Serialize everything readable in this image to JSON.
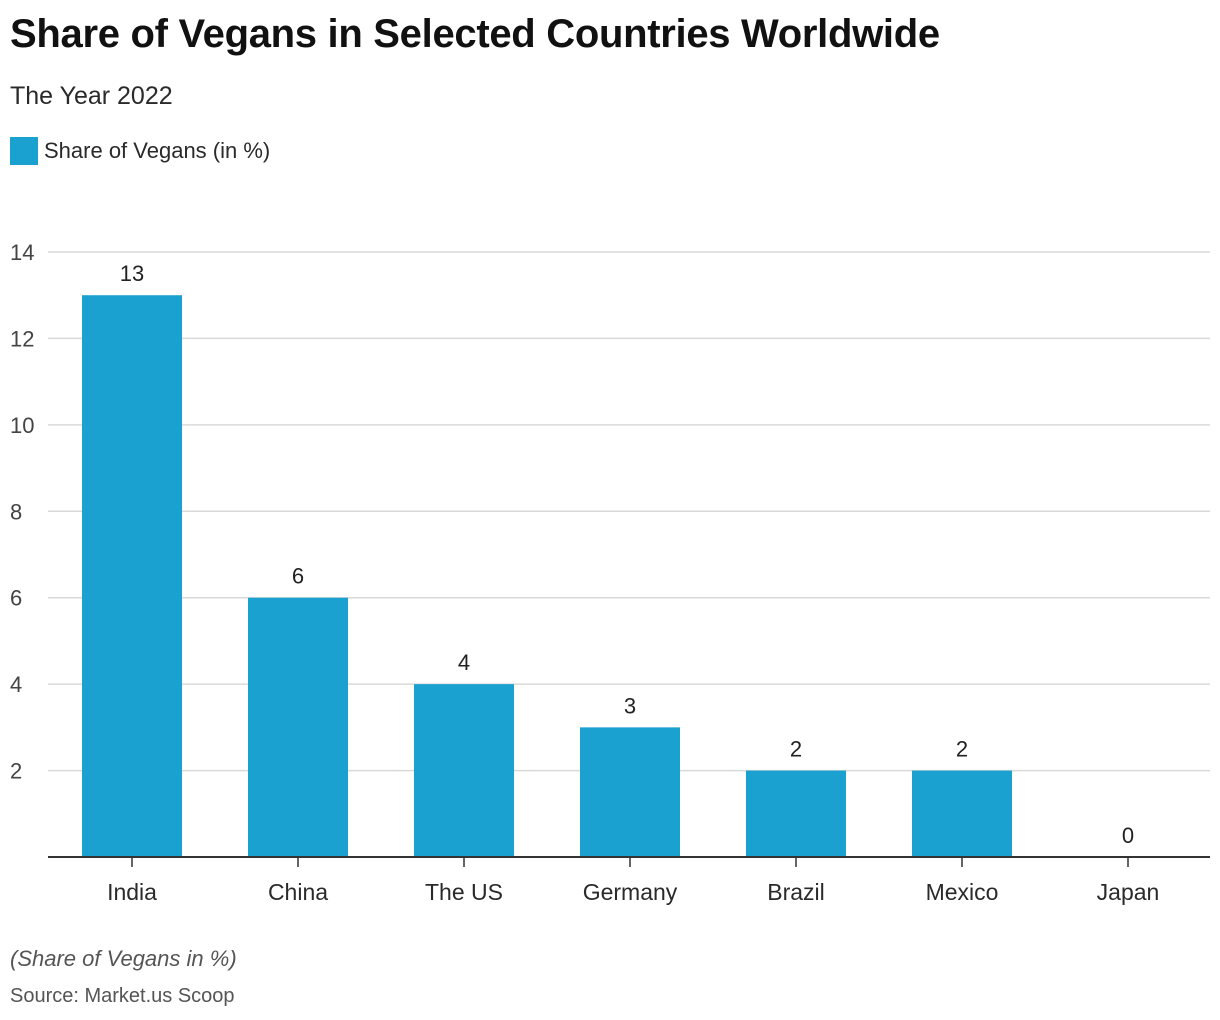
{
  "chart_data": {
    "type": "bar",
    "title": "Share of Vegans in Selected Countries Worldwide",
    "subtitle": "The Year 2022",
    "categories": [
      "India",
      "China",
      "The US",
      "Germany",
      "Brazil",
      "Mexico",
      "Japan"
    ],
    "series": [
      {
        "name": "Share of Vegans (in %)",
        "values": [
          13,
          6,
          4,
          3,
          2,
          2,
          0
        ],
        "color": "#1aa1cf"
      }
    ],
    "data_labels": [
      "13",
      "6",
      "4",
      "3",
      "2",
      "2",
      "0"
    ],
    "xlabel": "",
    "ylabel": "",
    "ylim": [
      0,
      14
    ],
    "yticks": [
      2,
      4,
      6,
      8,
      10,
      12,
      14
    ],
    "grid": true,
    "legend_position": "top-left"
  },
  "footnote": "(Share of Vegans in %)",
  "source": "Source: Market.us Scoop",
  "colors": {
    "bar": "#1aa1cf",
    "grid": "#d9d9d9",
    "axis": "#333333"
  }
}
